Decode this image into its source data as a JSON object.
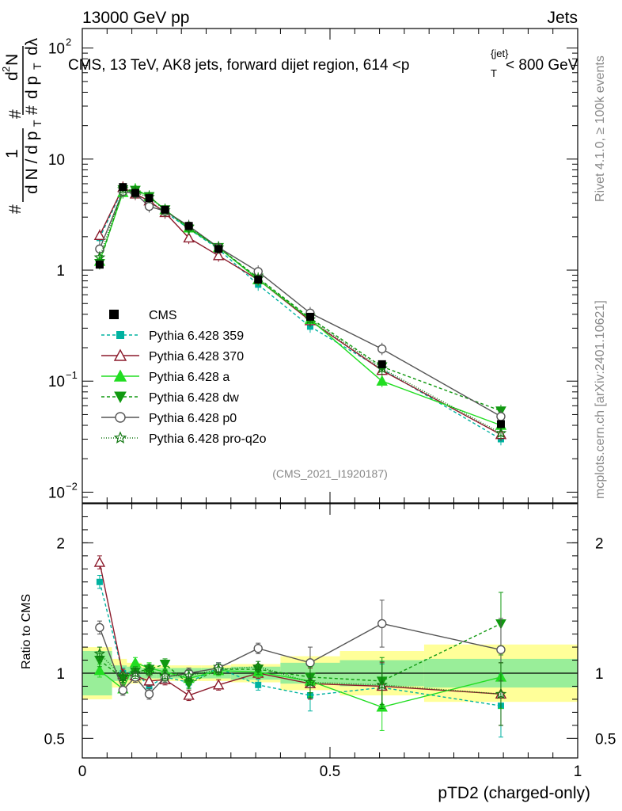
{
  "header": {
    "left": "13000 GeV pp",
    "right": "Jets"
  },
  "side_labels": {
    "rivet": "Rivet 4.1.0, ≥ 100k events",
    "mcplots": "mcplots.cern.ch [arXiv:2401.10621]"
  },
  "chart_data": {
    "type": "line",
    "title": "CMS, 13 TeV, AK8 jets, forward dijet region, 614 <p_T^{jet}< 800 GeV",
    "title_parts": {
      "main": "CMS, 13 TeV, AK8 jets, forward dijet region, 614 <p",
      "sup": "{jet}",
      "sub": "T",
      "tail": "< 800 GeV"
    },
    "analysis_label": "(CMS_2021_I1920187)",
    "ylabel": "1/N dN/dpT dλ",
    "ylabel_parts": {
      "hash1": "#",
      "one": "1",
      "dN": "d N / d p",
      "dN_sub": "T",
      "hash2": "#",
      "d2N": "d",
      "two": "2",
      "N": "N",
      "hash3": "#",
      "dp": "d p",
      "dp_sub": "T",
      "dl": "dλ"
    },
    "xlabel": "pTD2 (charged-only)",
    "ratio_ylabel": "Ratio to CMS",
    "xlim": [
      0,
      1
    ],
    "ylim": [
      0.008,
      150
    ],
    "ratio_ylim": [
      0.35,
      2.3
    ],
    "yscale": "log",
    "x_ticks": [
      "0",
      "0.5",
      "1"
    ],
    "y_ticks": [
      {
        "base": "10",
        "exp": "2"
      },
      {
        "base": "10",
        "exp": ""
      },
      {
        "base": "1",
        "exp": ""
      },
      {
        "base": "10",
        "exp": "−1"
      },
      {
        "base": "10",
        "exp": "−2"
      }
    ],
    "ratio_ticks": [
      "2",
      "1",
      "0.5"
    ],
    "bin_edges": [
      0,
      0.06,
      0.09,
      0.12,
      0.15,
      0.18,
      0.24,
      0.3,
      0.4,
      0.52,
      0.69,
      1.0
    ],
    "x": [
      0.035,
      0.082,
      0.107,
      0.135,
      0.167,
      0.215,
      0.275,
      0.355,
      0.46,
      0.605,
      0.845
    ],
    "cms": {
      "name": "CMS",
      "values": [
        1.12,
        5.6,
        4.95,
        4.45,
        3.5,
        2.5,
        1.55,
        0.82,
        0.38,
        0.142,
        0.041
      ],
      "ratio_band_inner": [
        0.17,
        0.06,
        0.05,
        0.04,
        0.04,
        0.04,
        0.04,
        0.05,
        0.08,
        0.1,
        0.11
      ],
      "ratio_band_outer": [
        0.2,
        0.11,
        0.08,
        0.06,
        0.06,
        0.06,
        0.06,
        0.07,
        0.13,
        0.17,
        0.22
      ]
    },
    "series": [
      {
        "name": "Pythia 6.428 359",
        "color": "#00b2a0",
        "dash": "4,3",
        "marker": "square",
        "values": [
          1.95,
          5.4,
          4.9,
          4.1,
          3.35,
          2.35,
          1.55,
          0.74,
          0.31,
          0.128,
          0.03
        ],
        "ratio": [
          1.7,
          1.0,
          1.01,
          0.9,
          0.97,
          0.93,
          1.04,
          0.91,
          0.83,
          0.89,
          0.75
        ]
      },
      {
        "name": "Pythia 6.428 370",
        "color": "#8b1a2b",
        "dash": "",
        "marker": "triangle-open",
        "values": [
          2.05,
          5.55,
          4.85,
          4.2,
          3.3,
          1.95,
          1.35,
          0.82,
          0.35,
          0.125,
          0.033
        ],
        "ratio": [
          1.85,
          0.99,
          0.98,
          0.94,
          0.95,
          0.83,
          0.91,
          1.0,
          0.92,
          0.9,
          0.84
        ]
      },
      {
        "name": "Pythia 6.428 a",
        "color": "#22dd22",
        "dash": "",
        "marker": "triangle",
        "values": [
          1.2,
          5.0,
          5.35,
          4.6,
          3.5,
          2.4,
          1.6,
          0.82,
          0.36,
          0.1,
          0.04
        ],
        "ratio": [
          1.02,
          0.88,
          1.08,
          1.04,
          1.01,
          0.96,
          1.02,
          1.01,
          0.94,
          0.74,
          0.97
        ]
      },
      {
        "name": "Pythia 6.428 dw",
        "color": "#119911",
        "dash": "4,3",
        "marker": "triangle-down",
        "values": [
          1.15,
          5.3,
          5.25,
          4.6,
          3.5,
          2.35,
          1.6,
          0.85,
          0.37,
          0.135,
          0.054
        ],
        "ratio": [
          1.1,
          0.96,
          1.01,
          1.03,
          1.07,
          0.92,
          1.03,
          1.03,
          0.97,
          0.94,
          1.38
        ]
      },
      {
        "name": "Pythia 6.428 p0",
        "color": "#555555",
        "dash": "",
        "marker": "circle-open",
        "values": [
          1.55,
          5.1,
          4.9,
          3.75,
          3.4,
          2.5,
          1.6,
          0.97,
          0.41,
          0.195,
          0.048
        ],
        "ratio": [
          1.35,
          0.87,
          0.97,
          0.84,
          0.97,
          1.0,
          1.04,
          1.19,
          1.08,
          1.38,
          1.18
        ]
      },
      {
        "name": "Pythia 6.428 pro-q2o",
        "color": "#117711",
        "dash": "1,2",
        "marker": "star",
        "values": [
          1.3,
          5.35,
          5.0,
          4.55,
          3.45,
          2.45,
          1.6,
          0.84,
          0.36,
          0.13,
          0.034
        ],
        "ratio": [
          1.15,
          0.97,
          1.0,
          1.02,
          0.98,
          0.98,
          1.03,
          1.05,
          0.93,
          0.91,
          0.84
        ]
      }
    ]
  }
}
